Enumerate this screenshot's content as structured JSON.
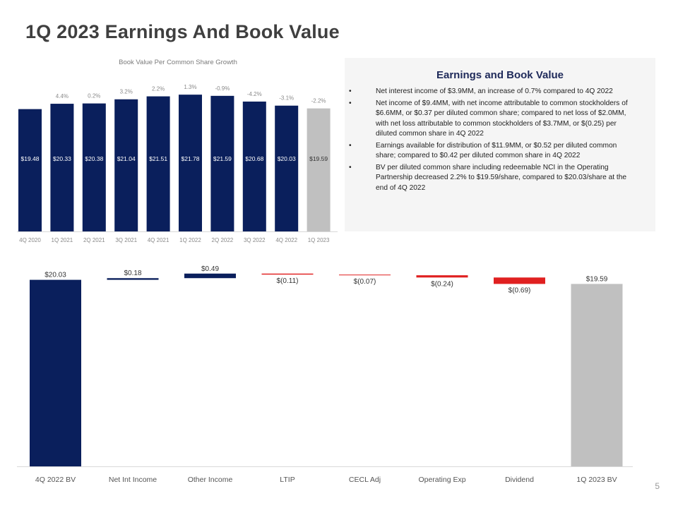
{
  "page": {
    "title": "1Q 2023 Earnings And Book Value",
    "page_number": "5"
  },
  "colors": {
    "navy": "#0a1f5c",
    "gray": "#c0c0c0",
    "red": "#e02020"
  },
  "panel": {
    "title": "Earnings and Book Value",
    "bullet_glyph": "•",
    "bullets": [
      "Net interest income of $3.9MM, an increase of 0.7% compared to 4Q 2022",
      "Net income of $9.4MM, with net income attributable to common stockholders of $6.6MM, or $0.37 per diluted common share; compared to net loss of $2.0MM, with net loss attributable to common stockholders of $3.7MM, or $(0.25) per diluted common share in 4Q 2022",
      "Earnings available for distribution of $11.9MM, or $0.52 per diluted common share; compared to $0.42 per diluted common share in 4Q 2022",
      "BV per diluted common share including redeemable NCI in the Operating Partnership decreased 2.2% to $19.59/share, compared to $20.03/share at the end of 4Q 2022"
    ]
  },
  "chart_data": [
    {
      "type": "bar",
      "title": "Book Value Per Common Share Growth",
      "categories": [
        "4Q 2020",
        "1Q 2021",
        "2Q 2021",
        "3Q 2021",
        "4Q 2021",
        "1Q 2022",
        "2Q 2022",
        "3Q 2022",
        "4Q 2022",
        "1Q 2023"
      ],
      "values": [
        19.48,
        20.33,
        20.38,
        21.04,
        21.51,
        21.78,
        21.59,
        20.68,
        20.03,
        19.59
      ],
      "value_labels": [
        "$19.48",
        "$20.33",
        "$20.38",
        "$21.04",
        "$21.51",
        "$21.78",
        "$21.59",
        "$20.68",
        "$20.03",
        "$19.59"
      ],
      "growth_labels": [
        "",
        "4.4%",
        "0.2%",
        "3.2%",
        "2.2%",
        "1.3%",
        "-0.9%",
        "-4.2%",
        "-3.1%",
        "-2.2%"
      ],
      "highlight_last": true
    },
    {
      "type": "waterfall",
      "categories": [
        "4Q 2022 BV",
        "Net Int Income",
        "Other Income",
        "LTIP",
        "CECL Adj",
        "Operating Exp",
        "Dividend",
        "1Q 2023 BV"
      ],
      "values": [
        20.03,
        0.18,
        0.49,
        -0.11,
        -0.07,
        -0.24,
        -0.69,
        19.59
      ],
      "kinds": [
        "total",
        "delta",
        "delta",
        "delta",
        "delta",
        "delta",
        "delta",
        "total"
      ],
      "value_labels": [
        "$20.03",
        "$0.18",
        "$0.49",
        "$(0.11)",
        "$(0.07)",
        "$(0.24)",
        "$(0.69)",
        "$19.59"
      ]
    }
  ]
}
